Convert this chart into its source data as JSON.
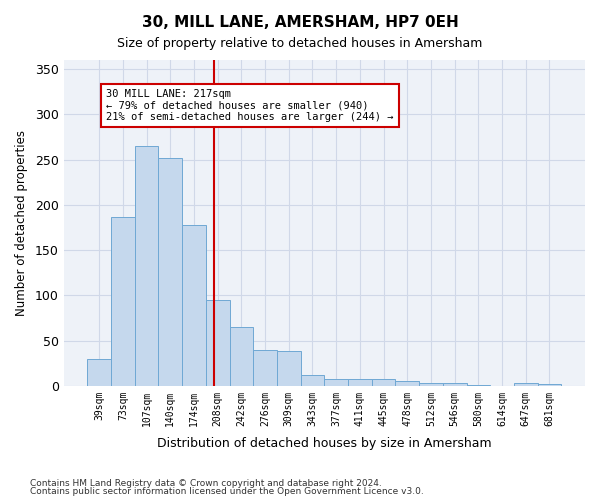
{
  "title": "30, MILL LANE, AMERSHAM, HP7 0EH",
  "subtitle": "Size of property relative to detached houses in Amersham",
  "xlabel": "Distribution of detached houses by size in Amersham",
  "ylabel": "Number of detached properties",
  "bar_labels": [
    "39sqm",
    "73sqm",
    "107sqm",
    "140sqm",
    "174sqm",
    "208sqm",
    "242sqm",
    "276sqm",
    "309sqm",
    "343sqm",
    "377sqm",
    "411sqm",
    "445sqm",
    "478sqm",
    "512sqm",
    "546sqm",
    "580sqm",
    "614sqm",
    "647sqm",
    "681sqm"
  ],
  "bar_heights": [
    30,
    187,
    265,
    252,
    178,
    95,
    65,
    40,
    38,
    12,
    7,
    8,
    7,
    5,
    3,
    3,
    1,
    0,
    3,
    2
  ],
  "bar_color": "#c5d8ed",
  "bar_edge_color": "#6fa8d4",
  "grid_color": "#d0d8e8",
  "background_color": "#eef2f8",
  "annotation_line1": "30 MILL LANE: 217sqm",
  "annotation_line2": "← 79% of detached houses are smaller (940)",
  "annotation_line3": "21% of semi-detached houses are larger (244) →",
  "annotation_box_color": "#ffffff",
  "annotation_box_edge": "#cc0000",
  "vline_x": 4.85,
  "vline_color": "#cc0000",
  "ylim": [
    0,
    360
  ],
  "yticks": [
    0,
    50,
    100,
    150,
    200,
    250,
    300,
    350
  ],
  "footnote1": "Contains HM Land Registry data © Crown copyright and database right 2024.",
  "footnote2": "Contains public sector information licensed under the Open Government Licence v3.0."
}
